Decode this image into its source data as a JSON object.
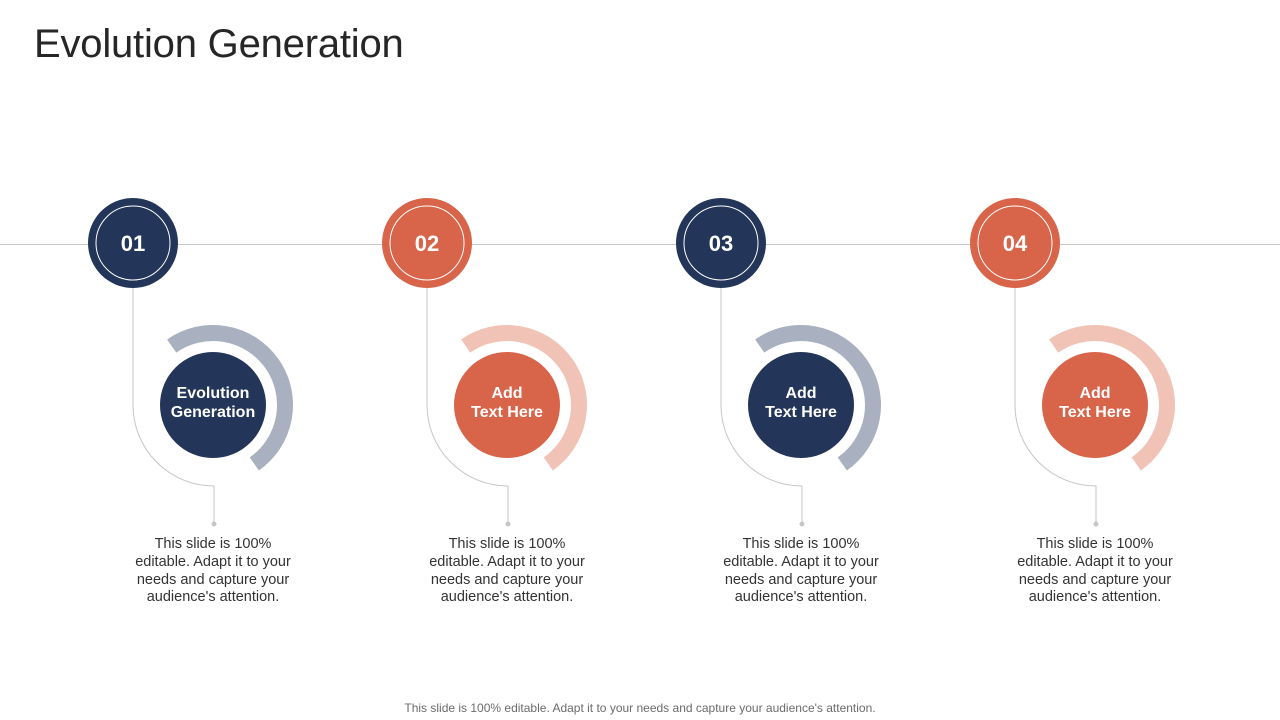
{
  "slide": {
    "title": "Evolution Generation",
    "footer": "This slide is 100% editable. Adapt it to your needs and capture your audience's attention."
  },
  "colors": {
    "navy": "#233559",
    "orange": "#D8644A",
    "navy_ring": "#A9B0BF",
    "orange_ring": "#F1C3B6",
    "connector": "#C6C6C6"
  },
  "steps": [
    {
      "number": "01",
      "label": "Evolution\nGeneration",
      "description": "This slide is 100% editable. Adapt it to your needs and capture your audience's attention.",
      "theme": "navy"
    },
    {
      "number": "02",
      "label": "Add\nText Here",
      "description": "This slide is 100% editable. Adapt it to your needs and capture your audience's attention.",
      "theme": "orange"
    },
    {
      "number": "03",
      "label": "Add\nText Here",
      "description": "This slide is 100% editable. Adapt it to your needs and capture your audience's attention.",
      "theme": "navy"
    },
    {
      "number": "04",
      "label": "Add\nText Here",
      "description": "This slide is 100% editable. Adapt it to your needs and capture your audience's attention.",
      "theme": "orange"
    }
  ]
}
